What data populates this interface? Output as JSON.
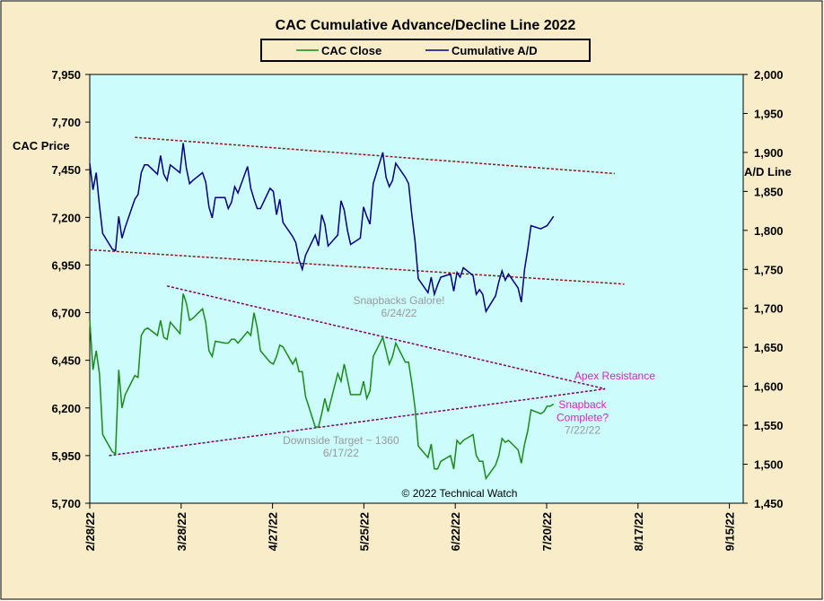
{
  "chart_data": {
    "type": "line",
    "title": "CAC Cumulative  Advance/Decline  Line  2022",
    "copyright": "© 2022 Technical  Watch",
    "legend": [
      {
        "name": "CAC Close",
        "color": "#1a8a1a"
      },
      {
        "name": "Cumulative A/D",
        "color": "#000080"
      }
    ],
    "legend_position": "top-center",
    "colors": {
      "page_background": "#f8edc8",
      "plot_background": "#ccfcfc",
      "cac_line": "#1a8a1a",
      "ad_line": "#000080",
      "trend_dark_red": "#8b1a1a",
      "trend_purple": "#800060",
      "annotation_magenta": "#e020c0",
      "annotation_gray": "#999999"
    },
    "left_axis": {
      "label": "CAC Price",
      "range": [
        5700,
        7950
      ],
      "ticks": [
        "5,700",
        "5,950",
        "6,200",
        "6,450",
        "6,700",
        "6,950",
        "7,200",
        "7,450",
        "7,700",
        "7,950"
      ]
    },
    "right_axis": {
      "label": "A/D Line",
      "range": [
        1450,
        2000
      ],
      "ticks": [
        "1,450",
        "1,500",
        "1,550",
        "1,600",
        "1,650",
        "1,700",
        "1,750",
        "1,800",
        "1,850",
        "1,900",
        "1,950",
        "2,000"
      ]
    },
    "x_axis": {
      "range": [
        "2022-02-28",
        "2022-09-15"
      ],
      "tick_labels": [
        "2/28/22",
        "3/28/22",
        "4/27/22",
        "5/25/22",
        "6/22/22",
        "7/20/22",
        "8/17/22",
        "9/15/22"
      ],
      "grid": false
    },
    "series": [
      {
        "name": "CAC Close",
        "axis": "left",
        "points": [
          [
            "2022-02-28",
            6660
          ],
          [
            "2022-03-01",
            6400
          ],
          [
            "2022-03-02",
            6500
          ],
          [
            "2022-03-03",
            6380
          ],
          [
            "2022-03-04",
            6060
          ],
          [
            "2022-03-07",
            5970
          ],
          [
            "2022-03-08",
            5960
          ],
          [
            "2022-03-09",
            6400
          ],
          [
            "2022-03-10",
            6200
          ],
          [
            "2022-03-11",
            6270
          ],
          [
            "2022-03-14",
            6370
          ],
          [
            "2022-03-15",
            6360
          ],
          [
            "2022-03-16",
            6580
          ],
          [
            "2022-03-17",
            6610
          ],
          [
            "2022-03-18",
            6620
          ],
          [
            "2022-03-21",
            6580
          ],
          [
            "2022-03-22",
            6660
          ],
          [
            "2022-03-23",
            6570
          ],
          [
            "2022-03-24",
            6560
          ],
          [
            "2022-03-25",
            6650
          ],
          [
            "2022-03-28",
            6590
          ],
          [
            "2022-03-29",
            6800
          ],
          [
            "2022-03-30",
            6750
          ],
          [
            "2022-03-31",
            6660
          ],
          [
            "2022-04-01",
            6670
          ],
          [
            "2022-04-04",
            6720
          ],
          [
            "2022-04-05",
            6650
          ],
          [
            "2022-04-06",
            6500
          ],
          [
            "2022-04-07",
            6470
          ],
          [
            "2022-04-08",
            6550
          ],
          [
            "2022-04-11",
            6540
          ],
          [
            "2022-04-12",
            6540
          ],
          [
            "2022-04-13",
            6560
          ],
          [
            "2022-04-14",
            6560
          ],
          [
            "2022-04-15",
            6540
          ],
          [
            "2022-04-18",
            6600
          ],
          [
            "2022-04-19",
            6580
          ],
          [
            "2022-04-20",
            6700
          ],
          [
            "2022-04-21",
            6620
          ],
          [
            "2022-04-22",
            6500
          ],
          [
            "2022-04-25",
            6440
          ],
          [
            "2022-04-26",
            6430
          ],
          [
            "2022-04-27",
            6470
          ],
          [
            "2022-04-28",
            6530
          ],
          [
            "2022-04-29",
            6520
          ],
          [
            "2022-05-02",
            6430
          ],
          [
            "2022-05-03",
            6460
          ],
          [
            "2022-05-04",
            6390
          ],
          [
            "2022-05-05",
            6390
          ],
          [
            "2022-05-06",
            6260
          ],
          [
            "2022-05-09",
            6100
          ],
          [
            "2022-05-10",
            6100
          ],
          [
            "2022-05-11",
            6170
          ],
          [
            "2022-05-12",
            6250
          ],
          [
            "2022-05-13",
            6180
          ],
          [
            "2022-05-16",
            6380
          ],
          [
            "2022-05-17",
            6340
          ],
          [
            "2022-05-18",
            6430
          ],
          [
            "2022-05-19",
            6350
          ],
          [
            "2022-05-20",
            6270
          ],
          [
            "2022-05-23",
            6270
          ],
          [
            "2022-05-24",
            6340
          ],
          [
            "2022-05-25",
            6250
          ],
          [
            "2022-05-26",
            6290
          ],
          [
            "2022-05-27",
            6470
          ],
          [
            "2022-05-30",
            6570
          ],
          [
            "2022-05-31",
            6500
          ],
          [
            "2022-06-01",
            6430
          ],
          [
            "2022-06-02",
            6470
          ],
          [
            "2022-06-03",
            6540
          ],
          [
            "2022-06-06",
            6440
          ],
          [
            "2022-06-07",
            6440
          ],
          [
            "2022-06-08",
            6330
          ],
          [
            "2022-06-09",
            6200
          ],
          [
            "2022-06-10",
            6000
          ],
          [
            "2022-06-13",
            5940
          ],
          [
            "2022-06-14",
            6010
          ],
          [
            "2022-06-15",
            5880
          ],
          [
            "2022-06-16",
            5880
          ],
          [
            "2022-06-17",
            5920
          ],
          [
            "2022-06-20",
            5950
          ],
          [
            "2022-06-21",
            5880
          ],
          [
            "2022-06-22",
            6030
          ],
          [
            "2022-06-23",
            6010
          ],
          [
            "2022-06-24",
            6030
          ],
          [
            "2022-06-27",
            6060
          ],
          [
            "2022-06-28",
            5950
          ],
          [
            "2022-06-29",
            5920
          ],
          [
            "2022-06-30",
            5920
          ],
          [
            "2022-07-01",
            5830
          ],
          [
            "2022-07-04",
            5900
          ],
          [
            "2022-07-05",
            5950
          ],
          [
            "2022-07-06",
            6040
          ],
          [
            "2022-07-07",
            6020
          ],
          [
            "2022-07-08",
            6030
          ],
          [
            "2022-07-11",
            5980
          ],
          [
            "2022-07-12",
            5910
          ],
          [
            "2022-07-13",
            6010
          ],
          [
            "2022-07-14",
            6080
          ],
          [
            "2022-07-15",
            6190
          ],
          [
            "2022-07-18",
            6170
          ],
          [
            "2022-07-19",
            6180
          ],
          [
            "2022-07-20",
            6210
          ],
          [
            "2022-07-21",
            6210
          ],
          [
            "2022-07-22",
            6220
          ]
        ]
      },
      {
        "name": "Cumulative A/D",
        "axis": "right",
        "points": [
          [
            "2022-02-28",
            1886
          ],
          [
            "2022-03-01",
            1852
          ],
          [
            "2022-03-02",
            1874
          ],
          [
            "2022-03-03",
            1832
          ],
          [
            "2022-03-04",
            1796
          ],
          [
            "2022-03-07",
            1776
          ],
          [
            "2022-03-08",
            1774
          ],
          [
            "2022-03-09",
            1818
          ],
          [
            "2022-03-10",
            1790
          ],
          [
            "2022-03-11",
            1804
          ],
          [
            "2022-03-14",
            1840
          ],
          [
            "2022-03-15",
            1846
          ],
          [
            "2022-03-16",
            1874
          ],
          [
            "2022-03-17",
            1884
          ],
          [
            "2022-03-18",
            1884
          ],
          [
            "2022-03-21",
            1872
          ],
          [
            "2022-03-22",
            1896
          ],
          [
            "2022-03-23",
            1872
          ],
          [
            "2022-03-24",
            1864
          ],
          [
            "2022-03-25",
            1884
          ],
          [
            "2022-03-28",
            1874
          ],
          [
            "2022-03-29",
            1912
          ],
          [
            "2022-03-30",
            1880
          ],
          [
            "2022-03-31",
            1860
          ],
          [
            "2022-04-01",
            1864
          ],
          [
            "2022-04-04",
            1874
          ],
          [
            "2022-04-05",
            1862
          ],
          [
            "2022-04-06",
            1830
          ],
          [
            "2022-04-07",
            1816
          ],
          [
            "2022-04-08",
            1842
          ],
          [
            "2022-04-11",
            1842
          ],
          [
            "2022-04-12",
            1828
          ],
          [
            "2022-04-13",
            1836
          ],
          [
            "2022-04-14",
            1856
          ],
          [
            "2022-04-15",
            1848
          ],
          [
            "2022-04-18",
            1882
          ],
          [
            "2022-04-19",
            1854
          ],
          [
            "2022-04-20",
            1840
          ],
          [
            "2022-04-21",
            1828
          ],
          [
            "2022-04-22",
            1828
          ],
          [
            "2022-04-25",
            1854
          ],
          [
            "2022-04-26",
            1850
          ],
          [
            "2022-04-27",
            1820
          ],
          [
            "2022-04-28",
            1840
          ],
          [
            "2022-04-29",
            1810
          ],
          [
            "2022-05-02",
            1792
          ],
          [
            "2022-05-03",
            1784
          ],
          [
            "2022-05-04",
            1762
          ],
          [
            "2022-05-05",
            1750
          ],
          [
            "2022-05-06",
            1768
          ],
          [
            "2022-05-09",
            1794
          ],
          [
            "2022-05-10",
            1780
          ],
          [
            "2022-05-11",
            1820
          ],
          [
            "2022-05-12",
            1808
          ],
          [
            "2022-05-13",
            1780
          ],
          [
            "2022-05-16",
            1794
          ],
          [
            "2022-05-17",
            1838
          ],
          [
            "2022-05-18",
            1826
          ],
          [
            "2022-05-19",
            1800
          ],
          [
            "2022-05-20",
            1782
          ],
          [
            "2022-05-23",
            1790
          ],
          [
            "2022-05-24",
            1830
          ],
          [
            "2022-05-25",
            1818
          ],
          [
            "2022-05-26",
            1808
          ],
          [
            "2022-05-27",
            1860
          ],
          [
            "2022-05-30",
            1900
          ],
          [
            "2022-05-31",
            1868
          ],
          [
            "2022-06-01",
            1856
          ],
          [
            "2022-06-02",
            1864
          ],
          [
            "2022-06-03",
            1886
          ],
          [
            "2022-06-06",
            1868
          ],
          [
            "2022-06-07",
            1860
          ],
          [
            "2022-06-08",
            1820
          ],
          [
            "2022-06-09",
            1786
          ],
          [
            "2022-06-10",
            1738
          ],
          [
            "2022-06-13",
            1720
          ],
          [
            "2022-06-14",
            1740
          ],
          [
            "2022-06-15",
            1718
          ],
          [
            "2022-06-16",
            1730
          ],
          [
            "2022-06-17",
            1740
          ],
          [
            "2022-06-20",
            1744
          ],
          [
            "2022-06-21",
            1722
          ],
          [
            "2022-06-22",
            1746
          ],
          [
            "2022-06-23",
            1740
          ],
          [
            "2022-06-24",
            1752
          ],
          [
            "2022-06-27",
            1742
          ],
          [
            "2022-06-28",
            1718
          ],
          [
            "2022-06-29",
            1724
          ],
          [
            "2022-06-30",
            1718
          ],
          [
            "2022-07-01",
            1696
          ],
          [
            "2022-07-04",
            1716
          ],
          [
            "2022-07-05",
            1734
          ],
          [
            "2022-07-06",
            1748
          ],
          [
            "2022-07-07",
            1736
          ],
          [
            "2022-07-08",
            1744
          ],
          [
            "2022-07-11",
            1726
          ],
          [
            "2022-07-12",
            1708
          ],
          [
            "2022-07-13",
            1750
          ],
          [
            "2022-07-14",
            1776
          ],
          [
            "2022-07-15",
            1806
          ],
          [
            "2022-07-18",
            1802
          ],
          [
            "2022-07-19",
            1804
          ],
          [
            "2022-07-20",
            1806
          ],
          [
            "2022-07-21",
            1812
          ],
          [
            "2022-07-22",
            1818
          ]
        ]
      }
    ],
    "trendlines": [
      {
        "axis": "left",
        "color_key": "trend_dark_red",
        "from": [
          "2022-03-14",
          7620
        ],
        "to": [
          "2022-08-10",
          7430
        ]
      },
      {
        "axis": "left",
        "color_key": "trend_dark_red",
        "from": [
          "2022-02-28",
          7030
        ],
        "to": [
          "2022-08-13",
          6850
        ]
      },
      {
        "axis": "left",
        "color_key": "trend_purple",
        "from": [
          "2022-03-24",
          6840
        ],
        "to": [
          "2022-08-07",
          6300
        ]
      },
      {
        "axis": "left",
        "color_key": "trend_purple",
        "from": [
          "2022-03-06",
          5950
        ],
        "to": [
          "2022-08-07",
          6300
        ]
      }
    ],
    "annotations": [
      {
        "text": "Snapbacks Galore!",
        "color_key": "annotation_gray",
        "x": "2022-06-04",
        "y": 6745
      },
      {
        "text": "6/24/22",
        "color_key": "annotation_gray",
        "x": "2022-06-04",
        "y": 6680
      },
      {
        "text": "Apex Resistance",
        "color_key": "annotation_magenta",
        "x": "2022-08-10",
        "y": 6350
      },
      {
        "text": "Snapback",
        "color_key": "annotation_magenta",
        "x": "2022-07-31",
        "y": 6200
      },
      {
        "text": "Complete?",
        "color_key": "annotation_magenta",
        "x": "2022-07-31",
        "y": 6130
      },
      {
        "text": "7/22/22",
        "color_key": "annotation_gray",
        "x": "2022-07-31",
        "y": 6065
      },
      {
        "text": "Downside  Target  ~ 1360",
        "color_key": "annotation_gray",
        "x": "2022-05-17",
        "y": 6010
      },
      {
        "text": "6/17/22",
        "color_key": "annotation_gray",
        "x": "2022-05-17",
        "y": 5945
      }
    ]
  }
}
